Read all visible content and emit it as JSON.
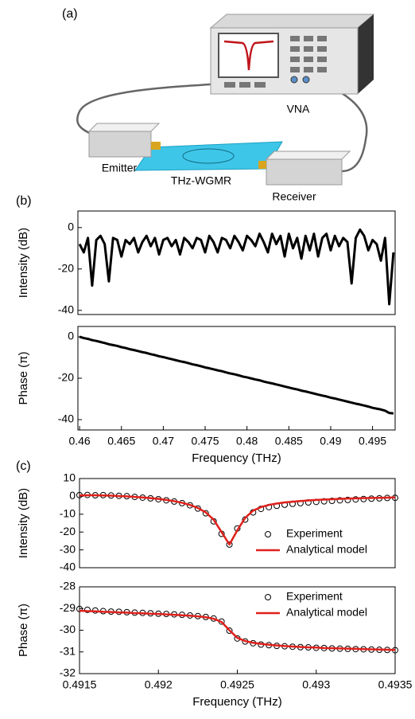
{
  "panels": [
    "(a)",
    "(b)",
    "(c)"
  ],
  "diagram": {
    "vna": "VNA",
    "emitter": "Emitter",
    "device": "THz-WGMR",
    "receiver": "Receiver"
  },
  "chart_data": [
    {
      "type": "line",
      "ylabel": "Intensity (dB)",
      "xlim": [
        0.4598,
        0.4977
      ],
      "ylim": [
        -42,
        8
      ],
      "yticks": [
        -40,
        -20,
        0
      ],
      "x": [
        0.46,
        0.4605,
        0.461,
        0.4615,
        0.462,
        0.4625,
        0.463,
        0.4635,
        0.464,
        0.4645,
        0.465,
        0.4655,
        0.466,
        0.4665,
        0.467,
        0.4675,
        0.468,
        0.4685,
        0.469,
        0.4695,
        0.47,
        0.4705,
        0.471,
        0.4715,
        0.472,
        0.4725,
        0.473,
        0.4735,
        0.474,
        0.4745,
        0.475,
        0.4755,
        0.476,
        0.4765,
        0.477,
        0.4775,
        0.478,
        0.4785,
        0.479,
        0.4795,
        0.48,
        0.4805,
        0.481,
        0.4815,
        0.482,
        0.4825,
        0.483,
        0.4835,
        0.484,
        0.4845,
        0.485,
        0.4855,
        0.486,
        0.4865,
        0.487,
        0.4875,
        0.488,
        0.4885,
        0.489,
        0.4895,
        0.49,
        0.4905,
        0.491,
        0.4915,
        0.492,
        0.4925,
        0.493,
        0.4935,
        0.494,
        0.4945,
        0.495,
        0.4955,
        0.496,
        0.4965,
        0.497,
        0.4975
      ],
      "series": [
        {
          "style": "line",
          "color": "#000000",
          "values": [
            -8,
            -12,
            -5,
            -28,
            -6,
            -4,
            -8,
            -26,
            -5,
            -6,
            -14,
            -6,
            -8,
            -5,
            -12,
            -7,
            -4,
            -9,
            -5,
            -13,
            -6,
            -5,
            -9,
            -6,
            -13,
            -5,
            -7,
            -10,
            -5,
            -6,
            -12,
            -4,
            -7,
            -12,
            -5,
            -6,
            -10,
            -4,
            -7,
            -11,
            -4,
            -6,
            -9,
            -3,
            -7,
            -12,
            -3,
            -8,
            -4,
            -14,
            -3,
            -10,
            -5,
            -15,
            -4,
            -11,
            -3,
            -14,
            -5,
            -3,
            -11,
            -4,
            -9,
            -5,
            -7,
            -27,
            -5,
            -1,
            -4,
            -11,
            -6,
            -8,
            -16,
            -5,
            -37,
            -12
          ]
        }
      ]
    },
    {
      "type": "line",
      "ylabel": "Phase (π)",
      "xlabel": "Frequency (THz)",
      "xlim": [
        0.4598,
        0.4977
      ],
      "ylim": [
        -45,
        5
      ],
      "yticks": [
        -40,
        -20,
        0
      ],
      "xticks": [
        0.46,
        0.465,
        0.47,
        0.475,
        0.48,
        0.485,
        0.49,
        0.495
      ],
      "x": [
        0.46,
        0.4605,
        0.461,
        0.4615,
        0.462,
        0.4625,
        0.463,
        0.4635,
        0.464,
        0.4645,
        0.465,
        0.4655,
        0.466,
        0.4665,
        0.467,
        0.4675,
        0.468,
        0.4685,
        0.469,
        0.4695,
        0.47,
        0.4705,
        0.471,
        0.4715,
        0.472,
        0.4725,
        0.473,
        0.4735,
        0.474,
        0.4745,
        0.475,
        0.4755,
        0.476,
        0.4765,
        0.477,
        0.4775,
        0.478,
        0.4785,
        0.479,
        0.4795,
        0.48,
        0.4805,
        0.481,
        0.4815,
        0.482,
        0.4825,
        0.483,
        0.4835,
        0.484,
        0.4845,
        0.485,
        0.4855,
        0.486,
        0.4865,
        0.487,
        0.4875,
        0.488,
        0.4885,
        0.489,
        0.4895,
        0.49,
        0.4905,
        0.491,
        0.4915,
        0.492,
        0.4925,
        0.493,
        0.4935,
        0.494,
        0.4945,
        0.495,
        0.4955,
        0.496,
        0.4965,
        0.497,
        0.4975
      ],
      "series": [
        {
          "style": "line",
          "color": "#000000",
          "values": [
            0,
            -0.6,
            -1.0,
            -1.6,
            -2.0,
            -2.5,
            -3.0,
            -3.6,
            -4.0,
            -4.4,
            -5.0,
            -5.4,
            -6.0,
            -6.4,
            -6.9,
            -7.4,
            -7.8,
            -8.4,
            -8.8,
            -9.4,
            -9.8,
            -10.3,
            -10.8,
            -11.3,
            -11.8,
            -12.2,
            -12.7,
            -13.3,
            -13.7,
            -14.2,
            -14.8,
            -15.2,
            -15.7,
            -16.2,
            -16.6,
            -17.2,
            -17.7,
            -18.1,
            -18.6,
            -19.2,
            -19.6,
            -20.1,
            -20.6,
            -21.0,
            -21.6,
            -22.1,
            -22.5,
            -23.0,
            -23.5,
            -24.0,
            -24.5,
            -25.0,
            -25.4,
            -26.0,
            -26.4,
            -26.9,
            -27.4,
            -27.9,
            -28.4,
            -28.8,
            -29.4,
            -29.8,
            -30.3,
            -30.8,
            -31.3,
            -31.8,
            -32.3,
            -32.7,
            -33.2,
            -33.7,
            -34.3,
            -34.7,
            -35.1,
            -35.7,
            -36.8,
            -37.0
          ]
        }
      ]
    },
    {
      "type": "line",
      "ylabel": "Intensity (dB)",
      "xlim": [
        0.4915,
        0.4935
      ],
      "ylim": [
        -40,
        10
      ],
      "yticks": [
        -40,
        -30,
        -20,
        -10,
        0,
        10
      ],
      "legend": "lower right",
      "x": [
        0.4915,
        0.49155,
        0.4916,
        0.49165,
        0.4917,
        0.49175,
        0.4918,
        0.49185,
        0.4919,
        0.49195,
        0.492,
        0.49205,
        0.4921,
        0.49215,
        0.4922,
        0.49225,
        0.4923,
        0.49235,
        0.4924,
        0.49245,
        0.4925,
        0.49255,
        0.4926,
        0.49265,
        0.4927,
        0.49275,
        0.4928,
        0.49285,
        0.4929,
        0.49295,
        0.493,
        0.49305,
        0.4931,
        0.49315,
        0.4932,
        0.49325,
        0.4933,
        0.49335,
        0.4934,
        0.49345,
        0.4935
      ],
      "series": [
        {
          "name": "Experiment",
          "style": "markers",
          "color": "#000000",
          "values": [
            0.7,
            0.8,
            0.6,
            0.7,
            0.5,
            0.3,
            0.1,
            -0.3,
            -0.7,
            -1.1,
            -1.6,
            -2.2,
            -2.9,
            -3.8,
            -5.0,
            -6.8,
            -9.5,
            -14,
            -21,
            -27,
            -18,
            -13,
            -9,
            -7,
            -6,
            -5.3,
            -4.7,
            -4.2,
            -3.8,
            -3.4,
            -3.1,
            -2.8,
            -2.5,
            -2.2,
            -2.0,
            -1.7,
            -1.5,
            -1.3,
            -1.1,
            -0.9,
            -0.8
          ]
        },
        {
          "name": "Analytical model",
          "style": "line",
          "color": "#e0201b",
          "values": [
            0.5,
            0.6,
            0.6,
            0.5,
            0.4,
            0.2,
            0,
            -0.3,
            -0.6,
            -1.0,
            -1.4,
            -2.0,
            -2.7,
            -3.6,
            -4.8,
            -6.5,
            -9.0,
            -13,
            -20,
            -27,
            -19,
            -12,
            -8,
            -6,
            -4.8,
            -4,
            -3.4,
            -3,
            -2.6,
            -2.3,
            -2,
            -1.8,
            -1.6,
            -1.4,
            -1.2,
            -1.1,
            -1.0,
            -0.9,
            -0.8,
            -0.7,
            -0.6
          ]
        }
      ]
    },
    {
      "type": "line",
      "ylabel": "Phase (π)",
      "xlabel": "Frequency (THz)",
      "xlim": [
        0.4915,
        0.4935
      ],
      "ylim": [
        -32,
        -28
      ],
      "yticks": [
        -32,
        -31,
        -30,
        -29,
        -28
      ],
      "legend": "upper right",
      "xticks": [
        0.4915,
        0.492,
        0.4925,
        0.493,
        0.4935
      ],
      "x": [
        0.4915,
        0.49155,
        0.4916,
        0.49165,
        0.4917,
        0.49175,
        0.4918,
        0.49185,
        0.4919,
        0.49195,
        0.492,
        0.49205,
        0.4921,
        0.49215,
        0.4922,
        0.49225,
        0.4923,
        0.49235,
        0.4924,
        0.49245,
        0.4925,
        0.49255,
        0.4926,
        0.49265,
        0.4927,
        0.49275,
        0.4928,
        0.49285,
        0.4929,
        0.49295,
        0.493,
        0.49305,
        0.4931,
        0.49315,
        0.4932,
        0.49325,
        0.4933,
        0.49335,
        0.4934,
        0.49345,
        0.4935
      ],
      "series": [
        {
          "name": "Experiment",
          "style": "markers",
          "color": "#000000",
          "values": [
            -29.02,
            -29.06,
            -29.09,
            -29.12,
            -29.14,
            -29.15,
            -29.17,
            -29.19,
            -29.2,
            -29.22,
            -29.24,
            -29.25,
            -29.27,
            -29.29,
            -29.32,
            -29.35,
            -29.39,
            -29.46,
            -29.6,
            -30.02,
            -30.38,
            -30.52,
            -30.6,
            -30.66,
            -30.69,
            -30.72,
            -30.74,
            -30.76,
            -30.78,
            -30.79,
            -30.81,
            -30.82,
            -30.84,
            -30.85,
            -30.86,
            -30.87,
            -30.88,
            -30.89,
            -30.9,
            -30.91,
            -30.92
          ]
        },
        {
          "name": "Analytical model",
          "style": "line",
          "color": "#e0201b",
          "values": [
            -29.1,
            -29.12,
            -29.13,
            -29.15,
            -29.16,
            -29.18,
            -29.19,
            -29.21,
            -29.22,
            -29.24,
            -29.25,
            -29.27,
            -29.29,
            -29.31,
            -29.33,
            -29.36,
            -29.4,
            -29.47,
            -29.62,
            -30.0,
            -30.35,
            -30.5,
            -30.58,
            -30.63,
            -30.67,
            -30.7,
            -30.73,
            -30.75,
            -30.77,
            -30.79,
            -30.8,
            -30.82,
            -30.83,
            -30.84,
            -30.85,
            -30.86,
            -30.87,
            -30.88,
            -30.89,
            -30.9,
            -30.91
          ]
        }
      ]
    }
  ]
}
